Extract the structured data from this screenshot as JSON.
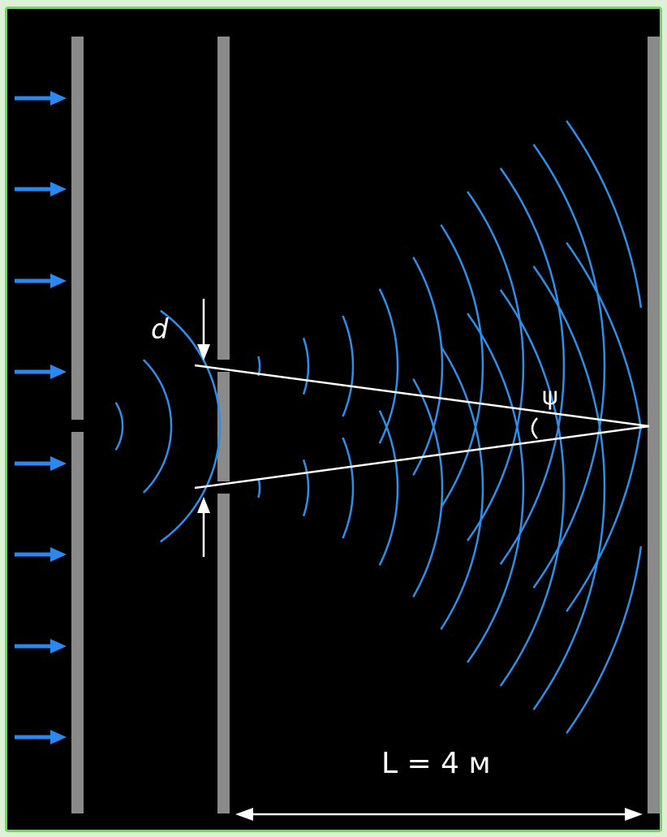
{
  "labels": {
    "slit_separation": "d",
    "angle": "ψ",
    "distance": "L = 4 м"
  },
  "colors": {
    "background": "#000000",
    "frame": "#7ccf6a",
    "screen": "#8a8a8a",
    "wave": "#2f8fe8",
    "incident_arrow": "#2a88ee",
    "line": "#ffffff"
  },
  "icons": {
    "incident_arrow": "arrow-right-icon",
    "dimension_arrow": "double-arrow-icon"
  }
}
